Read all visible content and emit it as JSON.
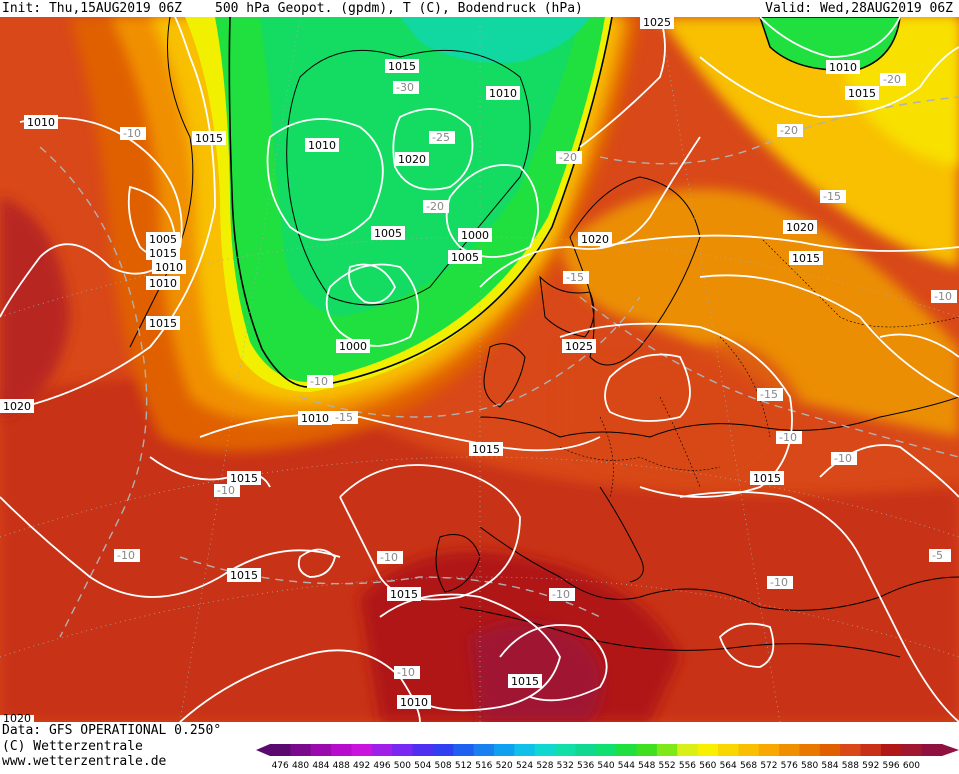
{
  "header": {
    "init": "Init: Thu,15AUG2019 06Z",
    "title": "500 hPa Geopot. (gpdm), T (C), Bodendruck (hPa)",
    "valid": "Valid: Wed,28AUG2019 06Z"
  },
  "footer": {
    "data_line": "Data: GFS OPERATIONAL 0.250°",
    "copyright": "(C) Wetterzentrale",
    "website": "www.wetterzentrale.de"
  },
  "colorbar": {
    "ticks": [
      "476",
      "480",
      "484",
      "488",
      "492",
      "496",
      "500",
      "504",
      "508",
      "512",
      "516",
      "520",
      "524",
      "528",
      "532",
      "536",
      "540",
      "544",
      "548",
      "552",
      "556",
      "560",
      "564",
      "568",
      "572",
      "576",
      "580",
      "584",
      "588",
      "592",
      "596",
      "600"
    ],
    "colors": [
      "#5a0a6e",
      "#7a0a8c",
      "#9a0aac",
      "#b80ccc",
      "#c814dc",
      "#a020e8",
      "#7828f0",
      "#5030f0",
      "#3040f0",
      "#2060f0",
      "#1a80f0",
      "#10a0f0",
      "#10c0e8",
      "#10d8d0",
      "#10e0a8",
      "#10d890",
      "#10e070",
      "#20e040",
      "#40e020",
      "#80e818",
      "#d8f018",
      "#f8f000",
      "#f8d800",
      "#f8c000",
      "#f8a800",
      "#f09000",
      "#e87800",
      "#e06000",
      "#d84818",
      "#c83018",
      "#b01818",
      "#a01830",
      "#901040"
    ]
  },
  "map_labels": {
    "pressure": [
      "1010",
      "1015",
      "1015",
      "1010",
      "1010",
      "1020",
      "1015",
      "1025",
      "1010",
      "1015",
      "1010",
      "1005",
      "1010",
      "1015",
      "1020",
      "1020",
      "1005",
      "1000",
      "1005",
      "1000",
      "1020",
      "1015",
      "1025",
      "1020",
      "1015",
      "1010",
      "1015",
      "1015",
      "1015",
      "1015",
      "1015",
      "1010",
      "1020",
      "1010",
      "1015"
    ],
    "temperature": [
      "-30",
      "-25",
      "-20",
      "-20",
      "-20",
      "-20",
      "-15",
      "-15",
      "-10",
      "-10",
      "-10",
      "-10",
      "-10",
      "-10",
      "-15",
      "-10",
      "-10",
      "-10",
      "-10",
      "-10",
      "-5",
      "-15"
    ]
  }
}
